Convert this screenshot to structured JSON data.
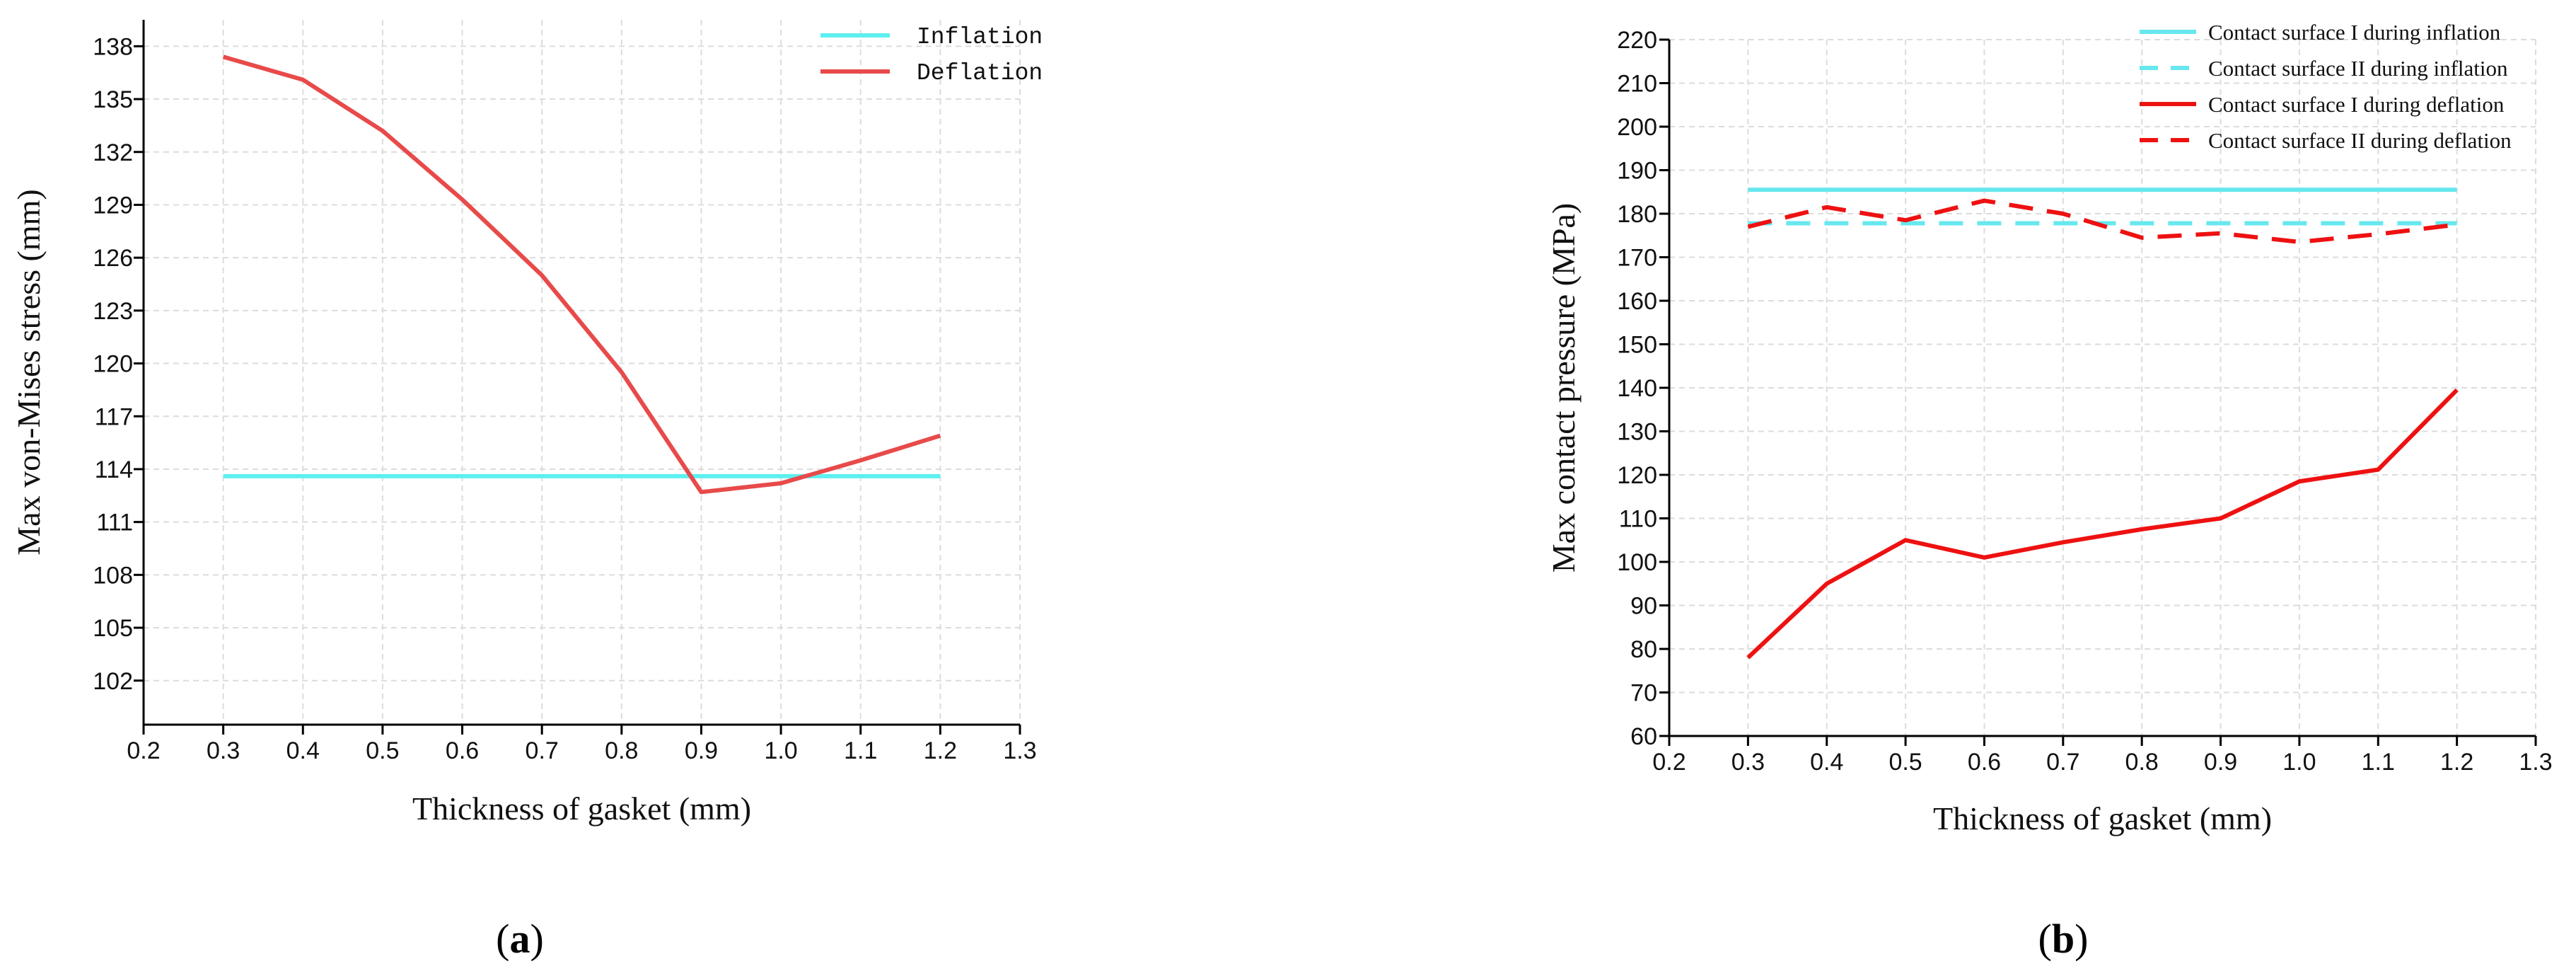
{
  "chart_data": [
    {
      "type": "line",
      "panel_label": "a",
      "xlabel": "Thickness of gasket (mm)",
      "ylabel": "Max von-Mises stress (mm)",
      "xlim": [
        0.2,
        1.3
      ],
      "ylim": [
        99.5,
        139.5
      ],
      "xticks": [
        "0.2",
        "0.3",
        "0.4",
        "0.5",
        "0.6",
        "0.7",
        "0.8",
        "0.9",
        "1.0",
        "1.1",
        "1.2",
        "1.3"
      ],
      "yticks": [
        "102",
        "105",
        "108",
        "111",
        "114",
        "117",
        "120",
        "123",
        "126",
        "129",
        "132",
        "135",
        "138"
      ],
      "grid": true,
      "legend_position": "top-right",
      "series": [
        {
          "name": "Inflation",
          "color": "#5ef0f0",
          "dash": "solid",
          "x": [
            0.3,
            1.2
          ],
          "y": [
            113.6,
            113.6
          ]
        },
        {
          "name": "Deflation",
          "color": "#e84a4a",
          "dash": "solid",
          "x": [
            0.3,
            0.4,
            0.5,
            0.6,
            0.7,
            0.8,
            0.9,
            1.0,
            1.1,
            1.2
          ],
          "y": [
            137.4,
            136.1,
            133.2,
            129.3,
            125.0,
            119.5,
            112.7,
            113.2,
            114.5,
            115.9
          ]
        }
      ]
    },
    {
      "type": "line",
      "panel_label": "b",
      "xlabel": "Thickness of gasket (mm)",
      "ylabel": "Max contact pressure (MPa)",
      "xlim": [
        0.2,
        1.3
      ],
      "ylim": [
        60,
        220
      ],
      "xticks": [
        "0.2",
        "0.3",
        "0.4",
        "0.5",
        "0.6",
        "0.7",
        "0.8",
        "0.9",
        "1.0",
        "1.1",
        "1.2",
        "1.3"
      ],
      "yticks": [
        "60",
        "70",
        "80",
        "90",
        "100",
        "110",
        "120",
        "130",
        "140",
        "150",
        "160",
        "170",
        "180",
        "190",
        "200",
        "210",
        "220"
      ],
      "grid": true,
      "legend_position": "top-right",
      "series": [
        {
          "name": "Contact surface I during inflation",
          "color": "#66e8ee",
          "dash": "solid",
          "x": [
            0.3,
            1.2
          ],
          "y": [
            185.5,
            185.5
          ]
        },
        {
          "name": "Contact surface II during inflation",
          "color": "#66e8ee",
          "dash": "dashed",
          "x": [
            0.3,
            1.2
          ],
          "y": [
            177.8,
            177.8
          ]
        },
        {
          "name": "Contact surface I during deflation",
          "color": "#ee1111",
          "dash": "solid",
          "x": [
            0.3,
            0.4,
            0.5,
            0.6,
            0.7,
            0.8,
            0.9,
            1.0,
            1.1,
            1.2
          ],
          "y": [
            78,
            95,
            105,
            101,
            104.5,
            107.5,
            110,
            118.5,
            121.2,
            139.5
          ]
        },
        {
          "name": "Contact surface II during deflation",
          "color": "#ee1111",
          "dash": "dashed",
          "x": [
            0.3,
            0.4,
            0.5,
            0.6,
            0.7,
            0.8,
            0.9,
            1.0,
            1.1,
            1.2
          ],
          "y": [
            177,
            181.5,
            178.5,
            183,
            180,
            174.5,
            175.5,
            173.5,
            175.3,
            177.5
          ]
        }
      ]
    }
  ]
}
